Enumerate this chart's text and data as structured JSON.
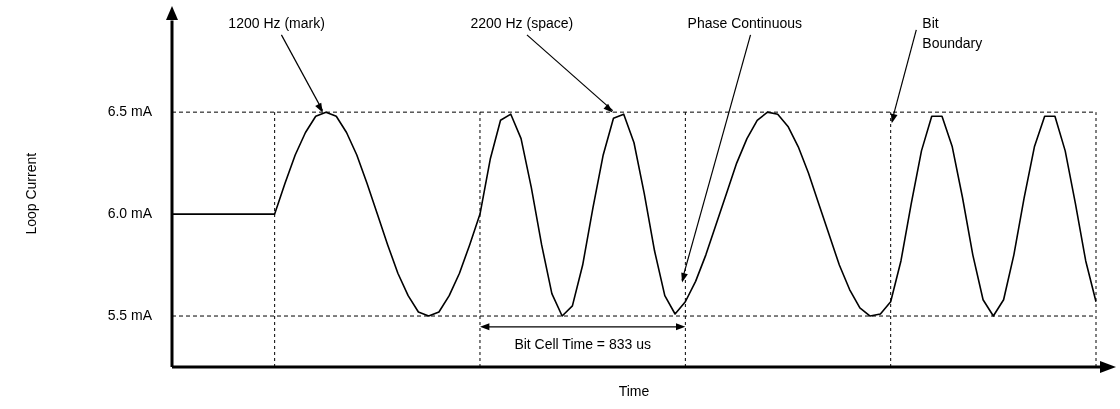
{
  "chart_data": {
    "type": "line",
    "xlabel": "Time",
    "ylabel": "Loop Current",
    "categories": [
      null,
      null,
      null,
      null,
      null,
      null,
      null,
      null,
      null,
      null,
      null,
      null,
      null,
      null,
      null,
      null,
      null,
      null,
      null,
      null,
      null,
      null,
      null,
      null,
      null,
      null,
      null,
      null,
      null,
      null,
      null,
      null,
      null,
      null,
      null,
      null,
      null,
      null,
      null,
      null,
      null,
      null,
      null,
      null,
      null,
      null,
      null,
      null,
      null,
      null,
      null,
      null,
      null,
      null,
      null,
      null,
      null,
      null,
      null,
      null,
      null,
      null,
      null,
      null,
      null,
      null,
      null,
      null,
      null,
      null,
      null,
      null,
      null,
      null,
      null,
      null,
      null,
      null,
      null,
      null,
      null,
      null,
      null,
      null,
      null,
      null,
      null,
      null,
      null,
      null,
      null
    ],
    "series": [
      {
        "color": "#000000",
        "values": [
          6.0,
          6.0,
          6.0,
          6.0,
          6.0,
          6.0,
          6.0,
          6.0,
          6.0,
          6.0,
          6.0,
          6.15,
          6.29,
          6.4,
          6.48,
          6.5,
          6.48,
          6.4,
          6.29,
          6.15,
          6.0,
          5.85,
          5.71,
          5.6,
          5.52,
          5.5,
          5.52,
          5.6,
          5.71,
          5.85,
          6.0,
          6.27,
          6.46,
          6.49,
          6.37,
          6.13,
          5.85,
          5.61,
          5.5,
          5.55,
          5.75,
          6.03,
          6.29,
          6.47,
          6.49,
          6.35,
          6.1,
          5.82,
          5.6,
          5.51,
          5.57,
          5.67,
          5.8,
          5.95,
          6.1,
          6.25,
          6.37,
          6.46,
          6.5,
          6.49,
          6.43,
          6.33,
          6.2,
          6.05,
          5.9,
          5.75,
          5.63,
          5.54,
          5.5,
          5.51,
          5.57,
          5.77,
          6.05,
          6.31,
          6.48,
          6.48,
          6.33,
          6.08,
          5.8,
          5.58,
          5.5,
          5.58,
          5.8,
          6.08,
          6.33,
          6.48,
          6.48,
          6.31,
          6.05,
          5.77,
          5.57
        ]
      }
    ],
    "ylim": [
      5.25,
      6.95
    ],
    "yticks": [
      {
        "value": 5.5,
        "label": "5.5 mA"
      },
      {
        "value": 6.0,
        "label": "6.0 mA"
      },
      {
        "value": 6.5,
        "label": "6.5 mA"
      }
    ],
    "tick_labels": "y",
    "grid": "x",
    "legend": false,
    "marker": "none",
    "line_style": "solid",
    "ref_lines": [
      {
        "axis": "y",
        "value": 6.5,
        "line_style": "dashed",
        "color": "#000000"
      },
      {
        "axis": "y",
        "value": 5.5,
        "line_style": "dashed",
        "color": "#000000"
      }
    ],
    "annotations": [
      "1200 Hz (mark)",
      "2200 Hz (space)",
      "Phase Continuous",
      "Bit Boundary",
      "Bit Cell Time = 833 us"
    ]
  }
}
